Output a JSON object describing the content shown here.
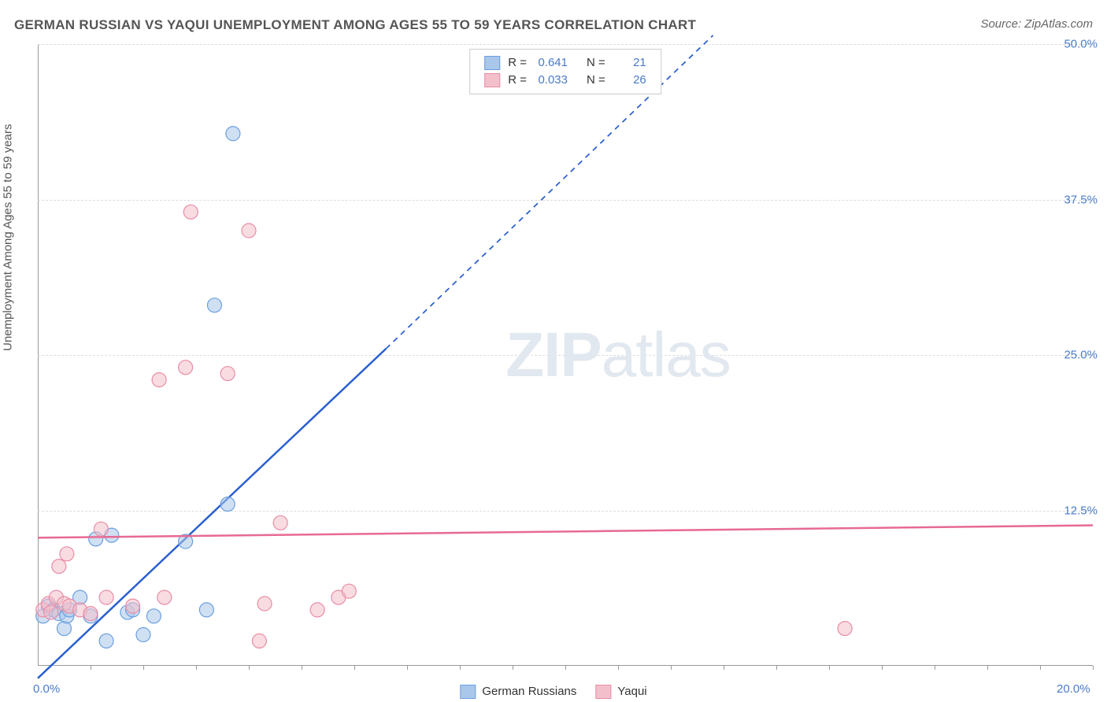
{
  "title": "GERMAN RUSSIAN VS YAQUI UNEMPLOYMENT AMONG AGES 55 TO 59 YEARS CORRELATION CHART",
  "source": "Source: ZipAtlas.com",
  "watermark_zip": "ZIP",
  "watermark_atlas": "atlas",
  "y_axis_label": "Unemployment Among Ages 55 to 59 years",
  "chart": {
    "type": "scatter",
    "xlim": [
      0,
      20
    ],
    "ylim": [
      0,
      50
    ],
    "background_color": "#ffffff",
    "grid_color": "#dddddd",
    "grid_dash": "4,4",
    "y_ticks": [
      {
        "value": 50.0,
        "label": "50.0%"
      },
      {
        "value": 37.5,
        "label": "37.5%"
      },
      {
        "value": 25.0,
        "label": "25.0%"
      },
      {
        "value": 12.5,
        "label": "12.5%"
      }
    ],
    "x_ticks_minor": [
      1,
      2,
      3,
      4,
      5,
      6,
      7,
      8,
      9,
      10,
      11,
      12,
      13,
      14,
      15,
      16,
      17,
      18,
      19,
      20
    ],
    "x_ticks_label": [
      {
        "value": 0,
        "label": "0.0%"
      },
      {
        "value": 20,
        "label": "20.0%"
      }
    ],
    "tick_label_color": "#4a7bc8",
    "axis_color": "#999999",
    "series": [
      {
        "name": "German Russians",
        "fill_color": "#a9c7ea",
        "stroke_color": "#6b9fe0",
        "marker_radius": 9,
        "marker_opacity": 0.55,
        "points": [
          [
            0.1,
            4.0
          ],
          [
            0.2,
            4.8
          ],
          [
            0.3,
            4.5
          ],
          [
            0.4,
            4.2
          ],
          [
            0.5,
            3.0
          ],
          [
            0.55,
            4.0
          ],
          [
            0.6,
            4.5
          ],
          [
            0.8,
            5.5
          ],
          [
            1.0,
            4.0
          ],
          [
            1.1,
            10.2
          ],
          [
            1.3,
            2.0
          ],
          [
            1.4,
            10.5
          ],
          [
            1.7,
            4.3
          ],
          [
            1.8,
            4.5
          ],
          [
            2.0,
            2.5
          ],
          [
            2.2,
            4.0
          ],
          [
            2.8,
            10.0
          ],
          [
            3.2,
            4.5
          ],
          [
            3.35,
            29.0
          ],
          [
            3.6,
            13.0
          ],
          [
            3.7,
            42.8
          ]
        ],
        "trend_line": {
          "color": "#2a5fd0",
          "width": 2.5,
          "solid_segment": [
            [
              0.0,
              -1.0
            ],
            [
              6.6,
              25.5
            ]
          ],
          "dashed_segment": [
            [
              6.6,
              25.5
            ],
            [
              12.8,
              50.7
            ]
          ],
          "dash_pattern": "7,6"
        }
      },
      {
        "name": "Yaqui",
        "fill_color": "#f3bfcb",
        "stroke_color": "#e98da6",
        "marker_radius": 9,
        "marker_opacity": 0.55,
        "points": [
          [
            0.1,
            4.5
          ],
          [
            0.2,
            5.0
          ],
          [
            0.25,
            4.3
          ],
          [
            0.35,
            5.5
          ],
          [
            0.4,
            8.0
          ],
          [
            0.5,
            5.0
          ],
          [
            0.55,
            9.0
          ],
          [
            0.6,
            4.8
          ],
          [
            0.8,
            4.5
          ],
          [
            1.0,
            4.2
          ],
          [
            1.2,
            11.0
          ],
          [
            1.3,
            5.5
          ],
          [
            1.8,
            4.8
          ],
          [
            2.3,
            23.0
          ],
          [
            2.4,
            5.5
          ],
          [
            2.8,
            24.0
          ],
          [
            2.9,
            36.5
          ],
          [
            3.6,
            23.5
          ],
          [
            4.0,
            35.0
          ],
          [
            4.2,
            2.0
          ],
          [
            4.3,
            5.0
          ],
          [
            4.6,
            11.5
          ],
          [
            5.3,
            4.5
          ],
          [
            5.7,
            5.5
          ],
          [
            5.9,
            6.0
          ],
          [
            15.3,
            3.0
          ]
        ],
        "trend_line": {
          "color": "#e76a93",
          "width": 2.5,
          "solid_segment": [
            [
              0.0,
              10.3
            ],
            [
              20.0,
              11.3
            ]
          ]
        }
      }
    ],
    "correlation_legend": [
      {
        "series": 0,
        "r_label": "R =",
        "r_value": "0.641",
        "n_label": "N =",
        "n_value": "21"
      },
      {
        "series": 1,
        "r_label": "R =",
        "r_value": "0.033",
        "n_label": "N =",
        "n_value": "26"
      }
    ],
    "bottom_legend": [
      {
        "series": 0,
        "label": "German Russians"
      },
      {
        "series": 1,
        "label": "Yaqui"
      }
    ]
  }
}
